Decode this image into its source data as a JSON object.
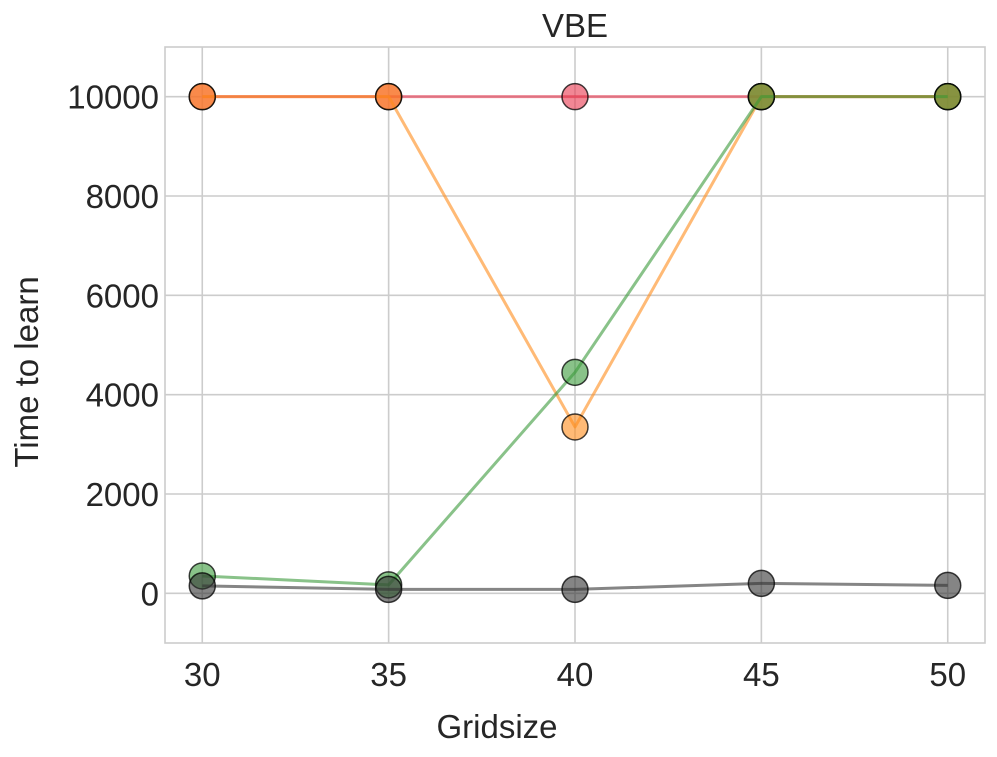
{
  "chart_data": {
    "type": "line",
    "title": "VBE",
    "xlabel": "Gridsize",
    "ylabel": "Time to learn",
    "x": [
      30,
      35,
      40,
      45,
      50
    ],
    "xlim": [
      29,
      51
    ],
    "ylim": [
      -1000,
      11000
    ],
    "xticks": [
      "30",
      "35",
      "40",
      "45",
      "50"
    ],
    "yticks": [
      "0",
      "2000",
      "4000",
      "6000",
      "8000",
      "10000"
    ],
    "grid": true,
    "series": [
      {
        "name": "red",
        "color": "#e8374f",
        "values": [
          10000,
          10000,
          10000,
          10000,
          10000
        ]
      },
      {
        "name": "orange",
        "color": "#ff8c1a",
        "values": [
          10000,
          10000,
          3350,
          10000,
          10000
        ]
      },
      {
        "name": "green",
        "color": "#3a9a3a",
        "values": [
          350,
          170,
          4450,
          10000,
          10000
        ]
      },
      {
        "name": "black",
        "color": "#333333",
        "values": [
          150,
          80,
          80,
          200,
          160
        ]
      }
    ]
  }
}
